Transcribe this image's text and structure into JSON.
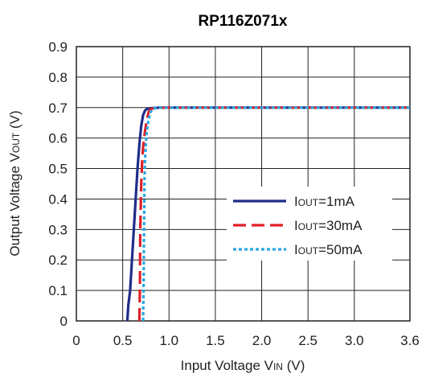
{
  "chart_data": {
    "type": "line",
    "title": "RP116Z071x",
    "xlabel": {
      "main": "Input Voltage V",
      "sub": "IN",
      "unit": " (V)"
    },
    "ylabel": {
      "main": "Output Voltage V",
      "sub": "OUT",
      "unit": " (V)"
    },
    "xlim": [
      0,
      3.6
    ],
    "ylim": [
      0,
      0.9
    ],
    "x_ticks": [
      0,
      0.5,
      1.0,
      1.5,
      2.0,
      2.5,
      3.0,
      3.6
    ],
    "x_tick_labels": [
      "0",
      "0.5",
      "1.0",
      "1.5",
      "2.0",
      "2.5",
      "3.0",
      "3.6"
    ],
    "y_ticks": [
      0,
      0.1,
      0.2,
      0.3,
      0.4,
      0.5,
      0.6,
      0.7,
      0.8,
      0.9
    ],
    "y_tick_labels": [
      "0",
      "0.1",
      "0.2",
      "0.3",
      "0.4",
      "0.5",
      "0.6",
      "0.7",
      "0.8",
      "0.9"
    ],
    "grid": true,
    "legend_position": "center-right",
    "series": [
      {
        "name": "I",
        "name_sub": "OUT",
        "name_suffix": "=1mA",
        "color": "#1f2d8a",
        "style": "solid",
        "x": [
          0.55,
          0.56,
          0.58,
          0.6,
          0.62,
          0.64,
          0.66,
          0.68,
          0.7,
          0.72,
          0.74,
          0.76,
          0.8,
          0.9,
          1.5,
          2.5,
          3.6
        ],
        "y": [
          0,
          0.05,
          0.1,
          0.2,
          0.3,
          0.4,
          0.5,
          0.58,
          0.64,
          0.675,
          0.69,
          0.695,
          0.698,
          0.7,
          0.7,
          0.7,
          0.7
        ]
      },
      {
        "name": "I",
        "name_sub": "OUT",
        "name_suffix": "=30mA",
        "color": "#e0202a",
        "style": "dashed",
        "x": [
          0.68,
          0.685,
          0.69,
          0.7,
          0.71,
          0.72,
          0.74,
          0.76,
          0.78,
          0.8,
          0.84,
          0.9,
          1.5,
          2.5,
          3.6
        ],
        "y": [
          0,
          0.1,
          0.3,
          0.45,
          0.52,
          0.57,
          0.62,
          0.66,
          0.685,
          0.695,
          0.698,
          0.7,
          0.7,
          0.7,
          0.7
        ]
      },
      {
        "name": "I",
        "name_sub": "OUT",
        "name_suffix": "=50mA",
        "color": "#2aa7e0",
        "style": "dotted",
        "x": [
          0.72,
          0.725,
          0.73,
          0.735,
          0.74,
          0.75,
          0.76,
          0.78,
          0.8,
          0.82,
          0.85,
          0.9,
          1.5,
          2.5,
          3.6
        ],
        "y": [
          0,
          0.1,
          0.3,
          0.45,
          0.52,
          0.58,
          0.62,
          0.66,
          0.685,
          0.695,
          0.698,
          0.7,
          0.7,
          0.7,
          0.7
        ]
      }
    ]
  }
}
